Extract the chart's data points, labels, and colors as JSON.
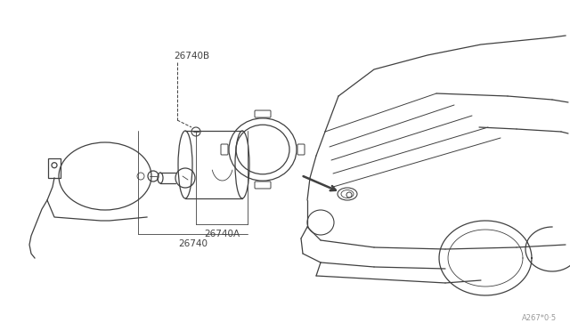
{
  "bg_color": "#ffffff",
  "line_color": "#404040",
  "fig_width": 6.4,
  "fig_height": 3.72,
  "dpi": 100,
  "watermark": "A267*0·5"
}
